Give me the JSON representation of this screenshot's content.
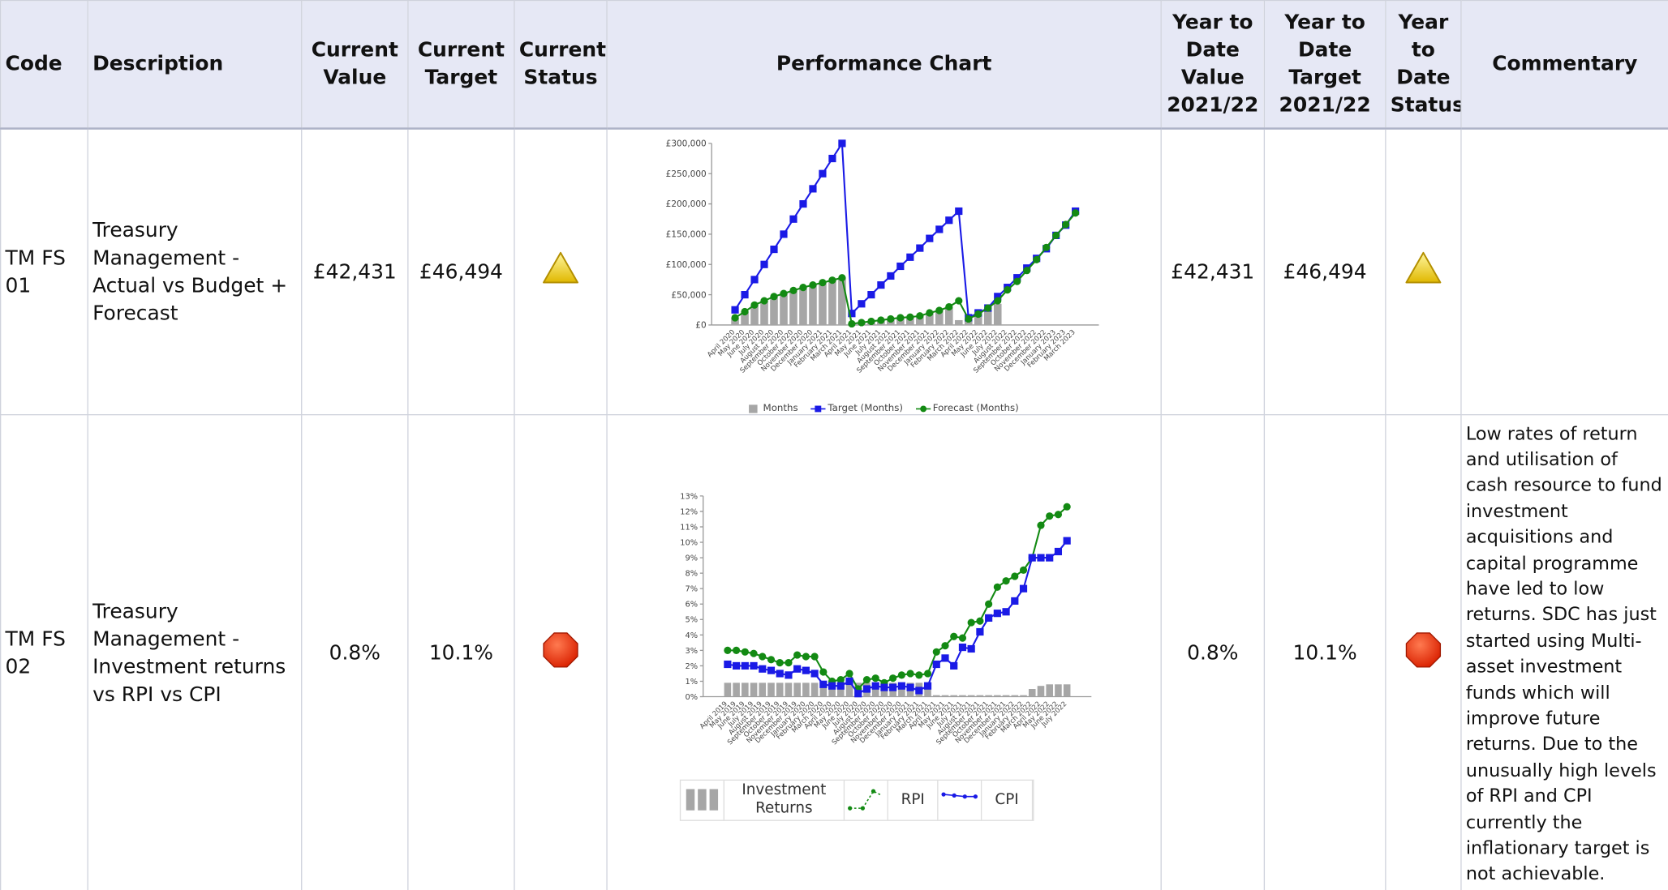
{
  "table": {
    "headers": [
      "Code",
      "Description",
      "Current Value",
      "Current Target",
      "Current Status",
      "Performance Chart",
      "Year to Date Value 2021/22",
      "Year to Date Target 2021/22",
      "Year to Date Status",
      "Commentary"
    ],
    "rows": [
      {
        "code": "TM FS 01",
        "description": "Treasury Management - Actual vs Budget + Forecast",
        "current_value": "£42,431",
        "current_target": "£46,494",
        "ytd_value": "£42,431",
        "ytd_target": "£46,494"
      },
      {
        "code": "TM FS 02",
        "description": "Treasury Management - Investment returns vs RPI vs CPI",
        "current_value": "0.8%",
        "current_target": "10.1%",
        "ytd_value": "0.8%",
        "ytd_target": "10.1%",
        "commentary": "Low rates of return and utilisation of cash resource to fund investment acquisitions and capital programme have led to low returns.  SDC has just started using Multi-asset investment funds which will improve future returns. Due to the unusually high levels of RPI and CPI currently the inflationary target is not achievable."
      }
    ]
  },
  "chart_data": [
    {
      "type": "combo",
      "categories": [
        "April 2020",
        "May 2020",
        "June 2020",
        "July 2020",
        "August 2020",
        "September 2020",
        "October 2020",
        "November 2020",
        "December 2020",
        "January 2021",
        "February 2021",
        "March 2021",
        "April 2021",
        "May 2021",
        "June 2021",
        "July 2021",
        "August 2021",
        "September 2021",
        "October 2021",
        "November 2021",
        "December 2021",
        "January 2022",
        "February 2022",
        "March 2022",
        "April 2022",
        "May 2022",
        "June 2022",
        "July 2022",
        "August 2022",
        "September 2022",
        "October 2022",
        "November 2022",
        "December 2022",
        "January 2023",
        "February 2023",
        "March 2023"
      ],
      "series": [
        {
          "name": "Months",
          "type": "bar",
          "color": "#a6a6a6",
          "values": [
            12000,
            22000,
            33000,
            40000,
            47000,
            52000,
            57000,
            62000,
            66000,
            70000,
            74000,
            78000,
            2000,
            4000,
            6000,
            8000,
            10000,
            12000,
            13000,
            15000,
            20000,
            24000,
            30000,
            8000,
            10000,
            18000,
            25000,
            35000,
            null,
            null,
            null,
            null,
            null,
            null,
            null,
            null
          ]
        },
        {
          "name": "Target (Months)",
          "type": "line",
          "marker": "square",
          "color": "#1a1ae6",
          "values": [
            25000,
            50000,
            75000,
            100000,
            125000,
            150000,
            175000,
            200000,
            225000,
            250000,
            275000,
            300000,
            19000,
            35000,
            50000,
            66000,
            81000,
            97000,
            112000,
            127000,
            143000,
            158000,
            173000,
            188000,
            12000,
            20000,
            28000,
            47000,
            62000,
            78000,
            94000,
            110000,
            126000,
            148000,
            165000,
            188000
          ]
        },
        {
          "name": "Forecast (Months)",
          "type": "line",
          "marker": "circle",
          "color": "#138a13",
          "values": [
            12000,
            22000,
            33000,
            40000,
            47000,
            52000,
            57000,
            62000,
            66000,
            70000,
            74000,
            78000,
            2000,
            4000,
            6000,
            8000,
            10000,
            12000,
            13000,
            15000,
            20000,
            24000,
            30000,
            40000,
            10000,
            18000,
            28000,
            40000,
            58000,
            72000,
            90000,
            108000,
            128000,
            148000,
            166000,
            185000
          ]
        }
      ],
      "ylim": [
        0,
        300000
      ],
      "yticks": [
        {
          "value": 0,
          "label": "£0"
        },
        {
          "value": 50000,
          "label": "£50,000"
        },
        {
          "value": 100000,
          "label": "£100,000"
        },
        {
          "value": 150000,
          "label": "£150,000"
        },
        {
          "value": 200000,
          "label": "£200,000"
        },
        {
          "value": 250000,
          "label": "£250,000"
        },
        {
          "value": 300000,
          "label": "£300,000"
        }
      ],
      "legend": "bottom"
    },
    {
      "type": "combo",
      "categories": [
        "April 2019",
        "May 2019",
        "June 2019",
        "July 2019",
        "August 2019",
        "September 2019",
        "October 2019",
        "November 2019",
        "December 2019",
        "January 2020",
        "February 2020",
        "March 2020",
        "April 2020",
        "May 2020",
        "June 2020",
        "July 2020",
        "August 2020",
        "September 2020",
        "October 2020",
        "November 2020",
        "December 2020",
        "January 2021",
        "February 2021",
        "March 2021",
        "April 2021",
        "May 2021",
        "June 2021",
        "July 2021",
        "August 2021",
        "September 2021",
        "October 2021",
        "November 2021",
        "December 2021",
        "January 2022",
        "February 2022",
        "March 2022",
        "April 2022",
        "May 2022",
        "June 2022",
        "July 2022"
      ],
      "series": [
        {
          "name": "Investment Returns",
          "type": "bar",
          "color": "#a6a6a6",
          "values": [
            0.9,
            0.9,
            0.9,
            0.9,
            0.9,
            0.9,
            0.9,
            0.9,
            0.9,
            0.9,
            0.9,
            0.9,
            0.9,
            0.9,
            0.9,
            0.9,
            0.9,
            0.9,
            0.9,
            0.9,
            0.9,
            0.9,
            0.9,
            0.9,
            0.1,
            0.1,
            0.1,
            0.1,
            0.1,
            0.1,
            0.1,
            0.1,
            0.1,
            0.1,
            0.1,
            0.5,
            0.7,
            0.8,
            0.8,
            0.8
          ]
        },
        {
          "name": "RPI",
          "type": "line",
          "marker": "circle",
          "color": "#138a13",
          "values": [
            3.0,
            3.0,
            2.9,
            2.8,
            2.6,
            2.4,
            2.2,
            2.2,
            2.7,
            2.6,
            2.6,
            1.6,
            1.0,
            1.1,
            1.5,
            0.5,
            1.1,
            1.2,
            0.9,
            1.2,
            1.4,
            1.5,
            1.4,
            1.5,
            2.9,
            3.3,
            3.9,
            3.8,
            4.8,
            4.9,
            6.0,
            7.1,
            7.5,
            7.8,
            8.2,
            9.0,
            11.1,
            11.7,
            11.8,
            12.3
          ]
        },
        {
          "name": "CPI",
          "type": "line",
          "marker": "square",
          "color": "#1a1ae6",
          "values": [
            2.1,
            2.0,
            2.0,
            2.0,
            1.8,
            1.7,
            1.5,
            1.4,
            1.8,
            1.7,
            1.5,
            0.8,
            0.7,
            0.7,
            1.0,
            0.2,
            0.5,
            0.7,
            0.6,
            0.6,
            0.7,
            0.6,
            0.4,
            0.7,
            2.1,
            2.5,
            2.0,
            3.2,
            3.1,
            4.2,
            5.1,
            5.4,
            5.5,
            6.2,
            7.0,
            9.0,
            9.0,
            9.0,
            9.4,
            10.1
          ]
        }
      ],
      "ylim": [
        0,
        13
      ],
      "yticks": [
        {
          "value": 0,
          "label": "0%"
        },
        {
          "value": 1,
          "label": "1%"
        },
        {
          "value": 2,
          "label": "2%"
        },
        {
          "value": 3,
          "label": "3%"
        },
        {
          "value": 4,
          "label": "4%"
        },
        {
          "value": 5,
          "label": "5%"
        },
        {
          "value": 6,
          "label": "6%"
        },
        {
          "value": 7,
          "label": "7%"
        },
        {
          "value": 8,
          "label": "8%"
        },
        {
          "value": 9,
          "label": "9%"
        },
        {
          "value": 10,
          "label": "10%"
        },
        {
          "value": 11,
          "label": "11%"
        },
        {
          "value": 12,
          "label": "12%"
        },
        {
          "value": 13,
          "label": "13%"
        }
      ],
      "legend": "bottom"
    }
  ]
}
